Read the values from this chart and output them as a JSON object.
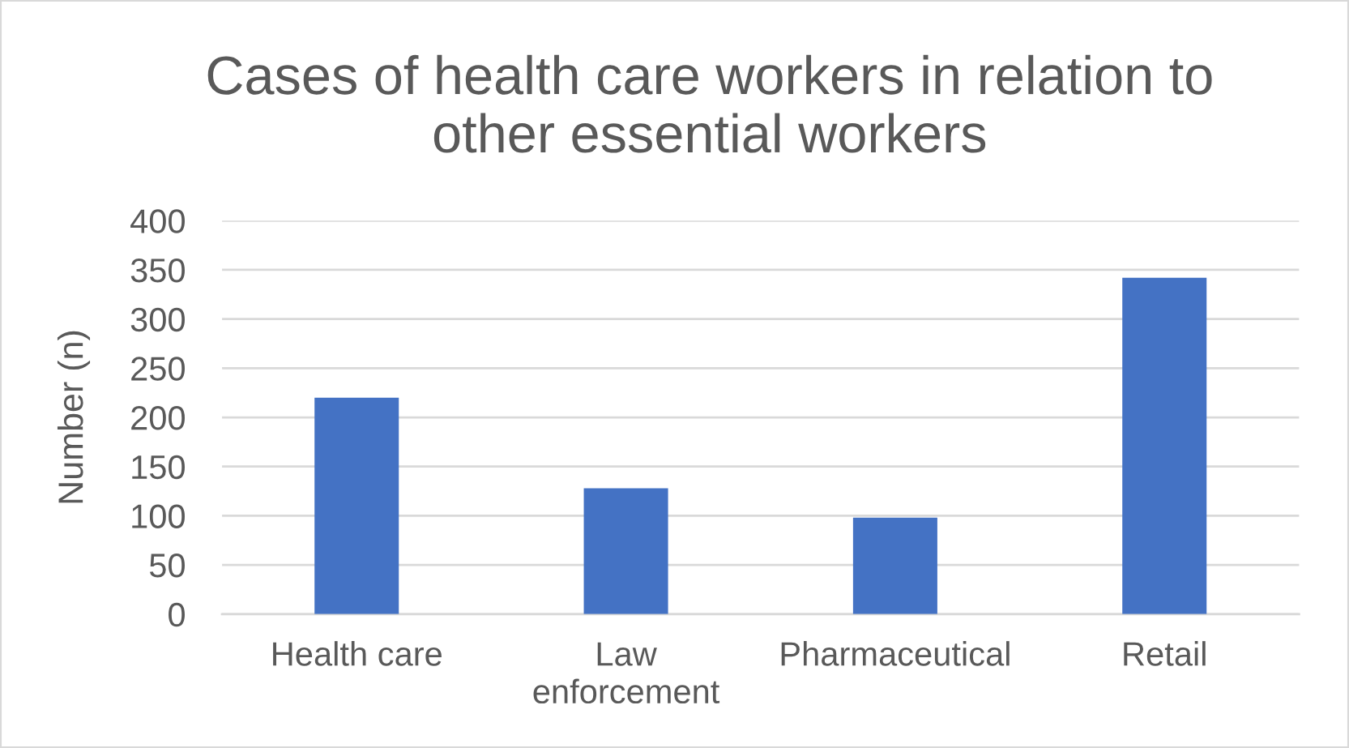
{
  "chart_data": {
    "type": "bar",
    "title": "Cases of health care workers in relation to\nother essential workers",
    "ylabel": "Number (n)",
    "categories": [
      "Health care",
      "Law\nenforcement",
      "Pharmaceutical",
      "Retail"
    ],
    "values": [
      220,
      128,
      98,
      342
    ],
    "color": "#4472c4",
    "ylim": [
      0,
      400
    ],
    "yticks": [
      0,
      50,
      100,
      150,
      200,
      250,
      300,
      350,
      400
    ],
    "grid": "y",
    "legend": false
  }
}
